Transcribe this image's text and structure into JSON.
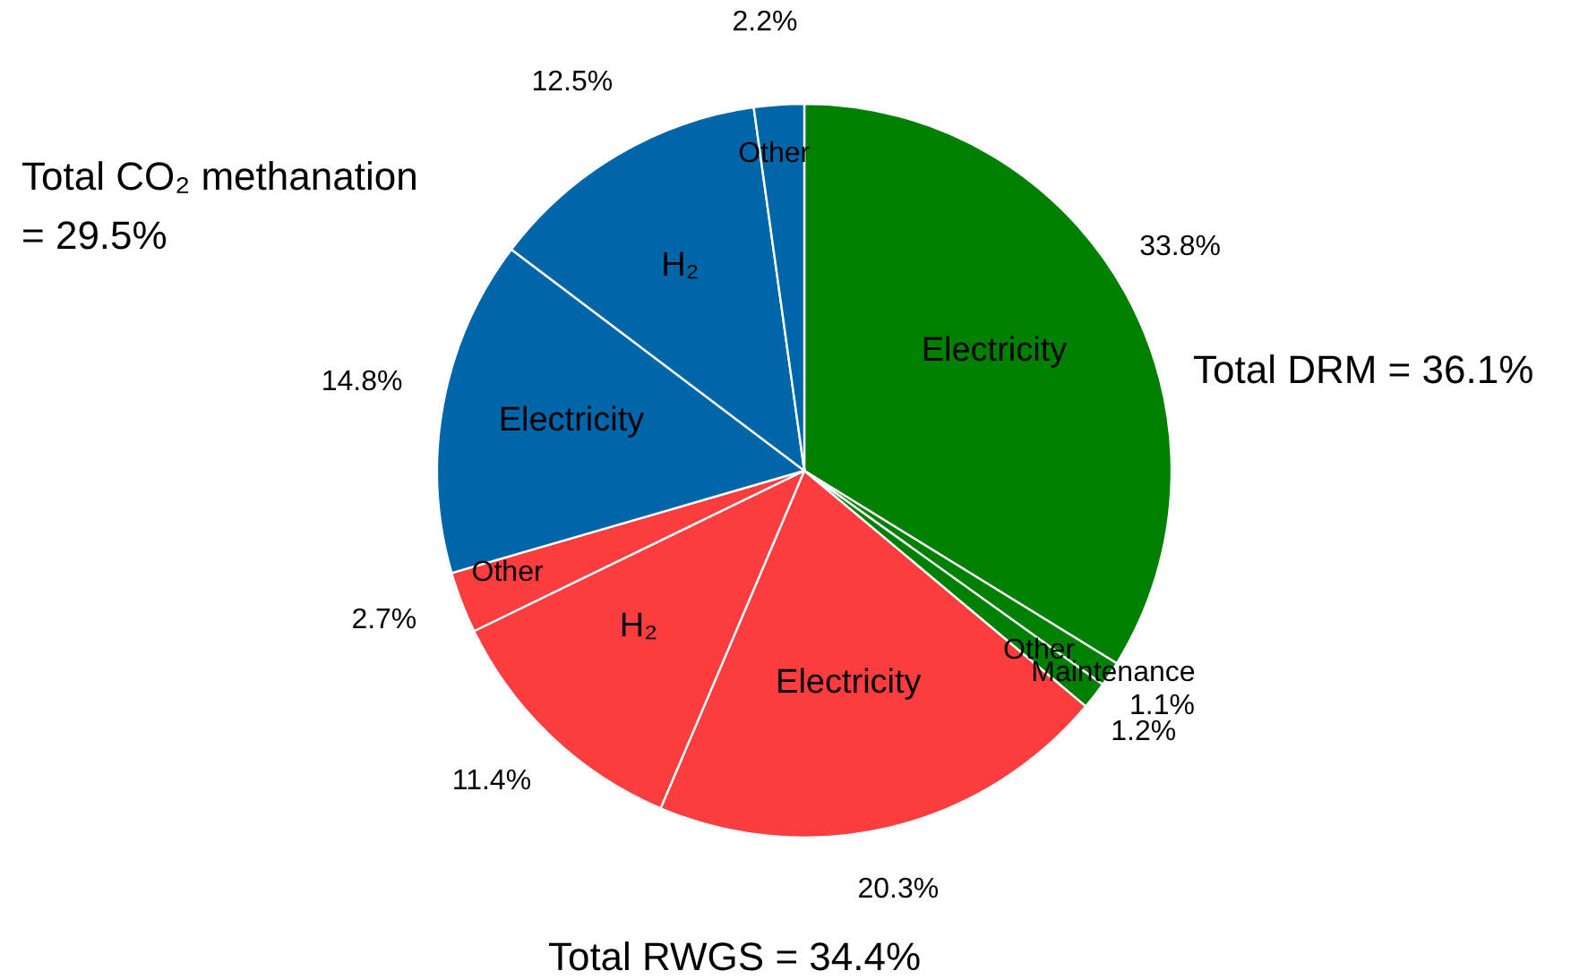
{
  "chart_data": {
    "type": "pie",
    "categories": [
      "Electricity",
      "Maintenance",
      "Other",
      "Electricity",
      "H₂",
      "Other",
      "Electricity",
      "H₂",
      "Other"
    ],
    "values": [
      33.8,
      1.1,
      1.2,
      20.3,
      11.4,
      2.7,
      14.8,
      12.5,
      2.2
    ],
    "colors": [
      "#008000",
      "#008000",
      "#008000",
      "#fc3d3f",
      "#fc3d3f",
      "#fc3d3f",
      "#0066aa",
      "#0066aa",
      "#0066aa"
    ],
    "value_labels": [
      "33.8%",
      "1.1%",
      "1.2%",
      "20.3%",
      "11.4%",
      "2.7%",
      "14.8%",
      "12.5%",
      "2.2%"
    ],
    "annotations": [
      "Total DRM = 36.1%",
      "Total RWGS = 34.4%",
      "Total CO₂ methanation = 29.5%"
    ],
    "legend": false
  }
}
